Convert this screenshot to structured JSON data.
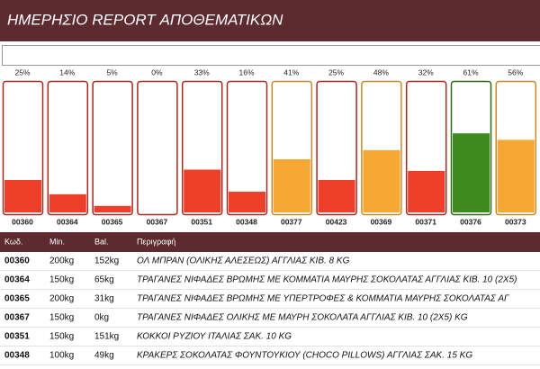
{
  "header": {
    "title": "ΗΜΕΡΗΣΙΟ REPORT ΑΠΟΘΕΜΑΤΙΚΩΝ"
  },
  "chart_data": {
    "type": "bar",
    "categories": [
      "00360",
      "00364",
      "00365",
      "00367",
      "00351",
      "00348",
      "00377",
      "00423",
      "00369",
      "00371",
      "00376",
      "00373"
    ],
    "values": [
      25,
      14,
      5,
      0,
      33,
      16,
      41,
      25,
      48,
      32,
      61,
      56
    ],
    "value_labels": [
      "25%",
      "14%",
      "5%",
      "0%",
      "33%",
      "16%",
      "41%",
      "25%",
      "48%",
      "32%",
      "61%",
      "56%"
    ],
    "colors": [
      "#ee3f2a",
      "#ee3f2a",
      "#ee3f2a",
      "#ee3f2a",
      "#ee3f2a",
      "#ee3f2a",
      "#f7a833",
      "#ee3f2a",
      "#f7a833",
      "#ee3f2a",
      "#3f8a1e",
      "#f7a833"
    ],
    "border_colors": [
      "#a8291f",
      "#a8291f",
      "#a8291f",
      "#a8291f",
      "#a8291f",
      "#a8291f",
      "#c98a25",
      "#a8291f",
      "#c98a25",
      "#a8291f",
      "#2e6a12",
      "#c98a25"
    ],
    "ylim": [
      0,
      100
    ]
  },
  "table": {
    "columns": [
      "Κωδ.",
      "Min.",
      "Bal.",
      "Περιγραφή"
    ],
    "rows": [
      [
        "00360",
        "200kg",
        "152kg",
        "ΟΛ ΜΠΡΑΝ (ΟΛΙΚΗΣ ΑΛΕΣΕΩΣ) ΑΓΓΛΙΑΣ ΚΙΒ. 8 KG"
      ],
      [
        "00364",
        "150kg",
        "65kg",
        "ΤΡΑΓΑΝΕΣ ΝΙΦΑΔΕΣ ΒΡΩΜΗΣ ΜΕ ΚΟΜΜΑΤΙΑ ΜΑΥΡΗΣ ΣΟΚΟΛΑΤΑΣ ΑΓΓΛΙΑΣ ΚΙΒ. 10 (2X5)"
      ],
      [
        "00365",
        "200kg",
        "31kg",
        "ΤΡΑΓΑΝΕΣ ΝΙΦΑΔΕΣ ΒΡΩΜΗΣ ΜΕ ΥΠΕΡΤΡΟΦΕΣ & ΚΟΜΜΑΤΙΑ ΜΑΥΡΗΣ ΣΟΚΟΛΑΤΑΣ ΑΓ"
      ],
      [
        "00367",
        "150kg",
        "0kg",
        "ΤΡΑΓΑΝΕΣ ΝΙΦΑΔΕΣ ΟΛΙΚΗΣ ΜΕ ΜΑΥΡΗ ΣΟΚΟΛΑΤΑ ΑΓΓΛΙΑΣ ΚΙΒ. 10 (2X5) KG"
      ],
      [
        "00351",
        "150kg",
        "151kg",
        "ΚΟΚΚΟΙ ΡΥΖΙΟΥ ΙΤΑΛΙΑΣ ΣΑΚ. 10 KG"
      ],
      [
        "00348",
        "100kg",
        "49kg",
        "ΚΡΑΚΕΡΣ ΣΟΚΟΛΑΤΑΣ ΦΟΥΝΤΟΥΚΙΟΥ (CHOCO PILLOWS) ΑΓΓΛΙΑΣ ΣΑΚ. 15 KG"
      ]
    ]
  }
}
